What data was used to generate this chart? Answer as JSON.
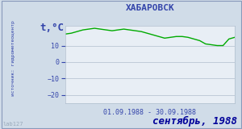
{
  "title": "ХАБАРОВСК",
  "ylabel": "t,°C",
  "date_label": "01.09.1988 - 30.09.1988",
  "footer_label": "сентябрь, 1988",
  "source_label": "источник: гидрометеоцентр",
  "watermark": "lab127",
  "ylim": [
    -25,
    22
  ],
  "yticks": [
    -20,
    -10,
    0,
    10
  ],
  "xlim": [
    0,
    29
  ],
  "line_color": "#00aa00",
  "plot_bg": "#e8eef5",
  "outer_bg": "#d0dce8",
  "grid_color": "#b0bece",
  "text_color": "#3344aa",
  "footer_color": "#000099",
  "temperatures": [
    17.0,
    17.5,
    18.5,
    19.5,
    20.0,
    20.5,
    20.0,
    19.5,
    19.0,
    19.5,
    20.0,
    19.5,
    19.0,
    18.5,
    17.5,
    16.5,
    15.5,
    14.5,
    15.0,
    15.5,
    15.5,
    15.0,
    14.0,
    13.0,
    11.0,
    10.5,
    10.0,
    10.0,
    14.0,
    15.0
  ]
}
